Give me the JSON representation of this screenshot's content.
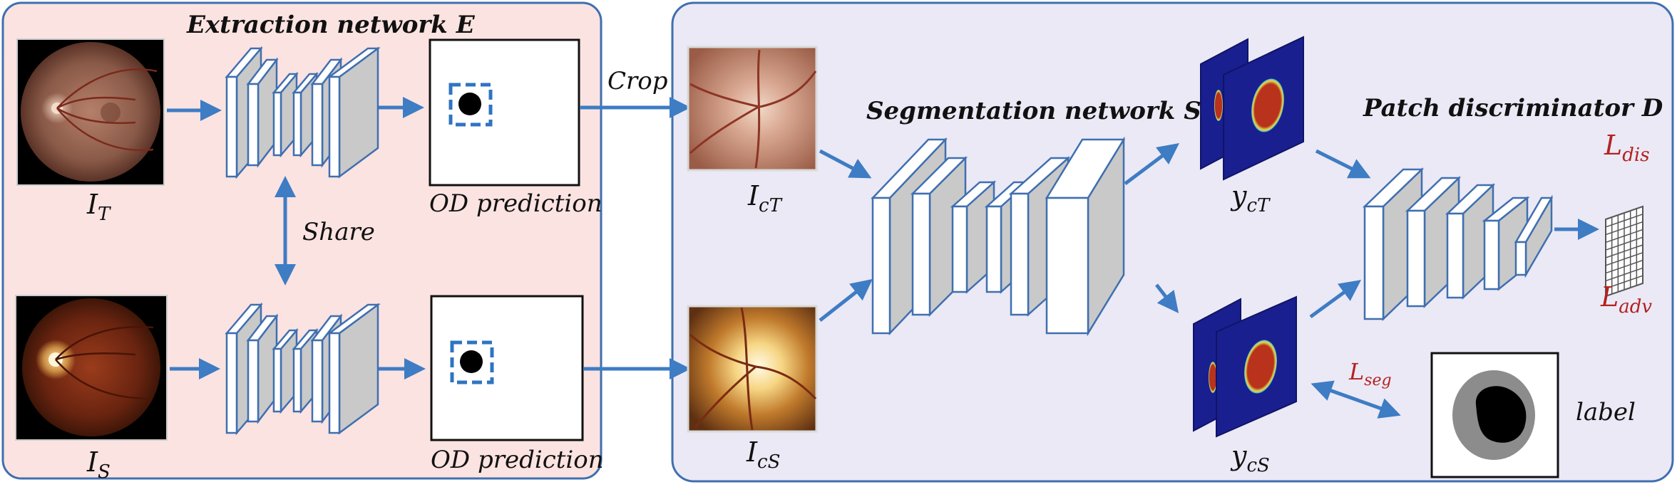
{
  "colors": {
    "extraction_bg": "#fbe3e1",
    "segmentation_bg": "#ebe9f5",
    "panel_border": "#3f6fb0",
    "arrow": "#3e7cc4",
    "block_edge": "#3f6fb0",
    "block_side": "#c9c9c9",
    "loss_text": "#b22222",
    "dashed_box": "#2f74c2",
    "map_background": "#1a1f8f",
    "map_region": "#b8321c"
  },
  "extraction": {
    "title": "Extraction network E",
    "share_label": "Share",
    "top_prediction_label": "OD prediction",
    "bottom_prediction_label": "OD prediction",
    "input_top": {
      "base": "I",
      "sub": "T"
    },
    "input_bottom": {
      "base": "I",
      "sub": "S"
    }
  },
  "crop_label": "Crop",
  "segmentation": {
    "title": "Segmentation network S",
    "crop_top": {
      "base": "I",
      "sub": "cT"
    },
    "crop_bottom": {
      "base": "I",
      "sub": "cS"
    },
    "output_top": {
      "base": "y",
      "sub": "cT"
    },
    "output_bottom": {
      "base": "y",
      "sub": "cS"
    }
  },
  "discriminator": {
    "title": "Patch discriminator D",
    "loss_dis": {
      "base": "L",
      "sub": "dis"
    },
    "loss_adv": {
      "base": "L",
      "sub": "adv"
    }
  },
  "loss_seg": {
    "base": "L",
    "sub": "seg"
  },
  "label_text": "label",
  "icons": [
    "fundus-image-icon",
    "optic-disc-crop-icon",
    "segmentation-map-icon",
    "patch-grid-icon",
    "ground-truth-label-icon"
  ]
}
